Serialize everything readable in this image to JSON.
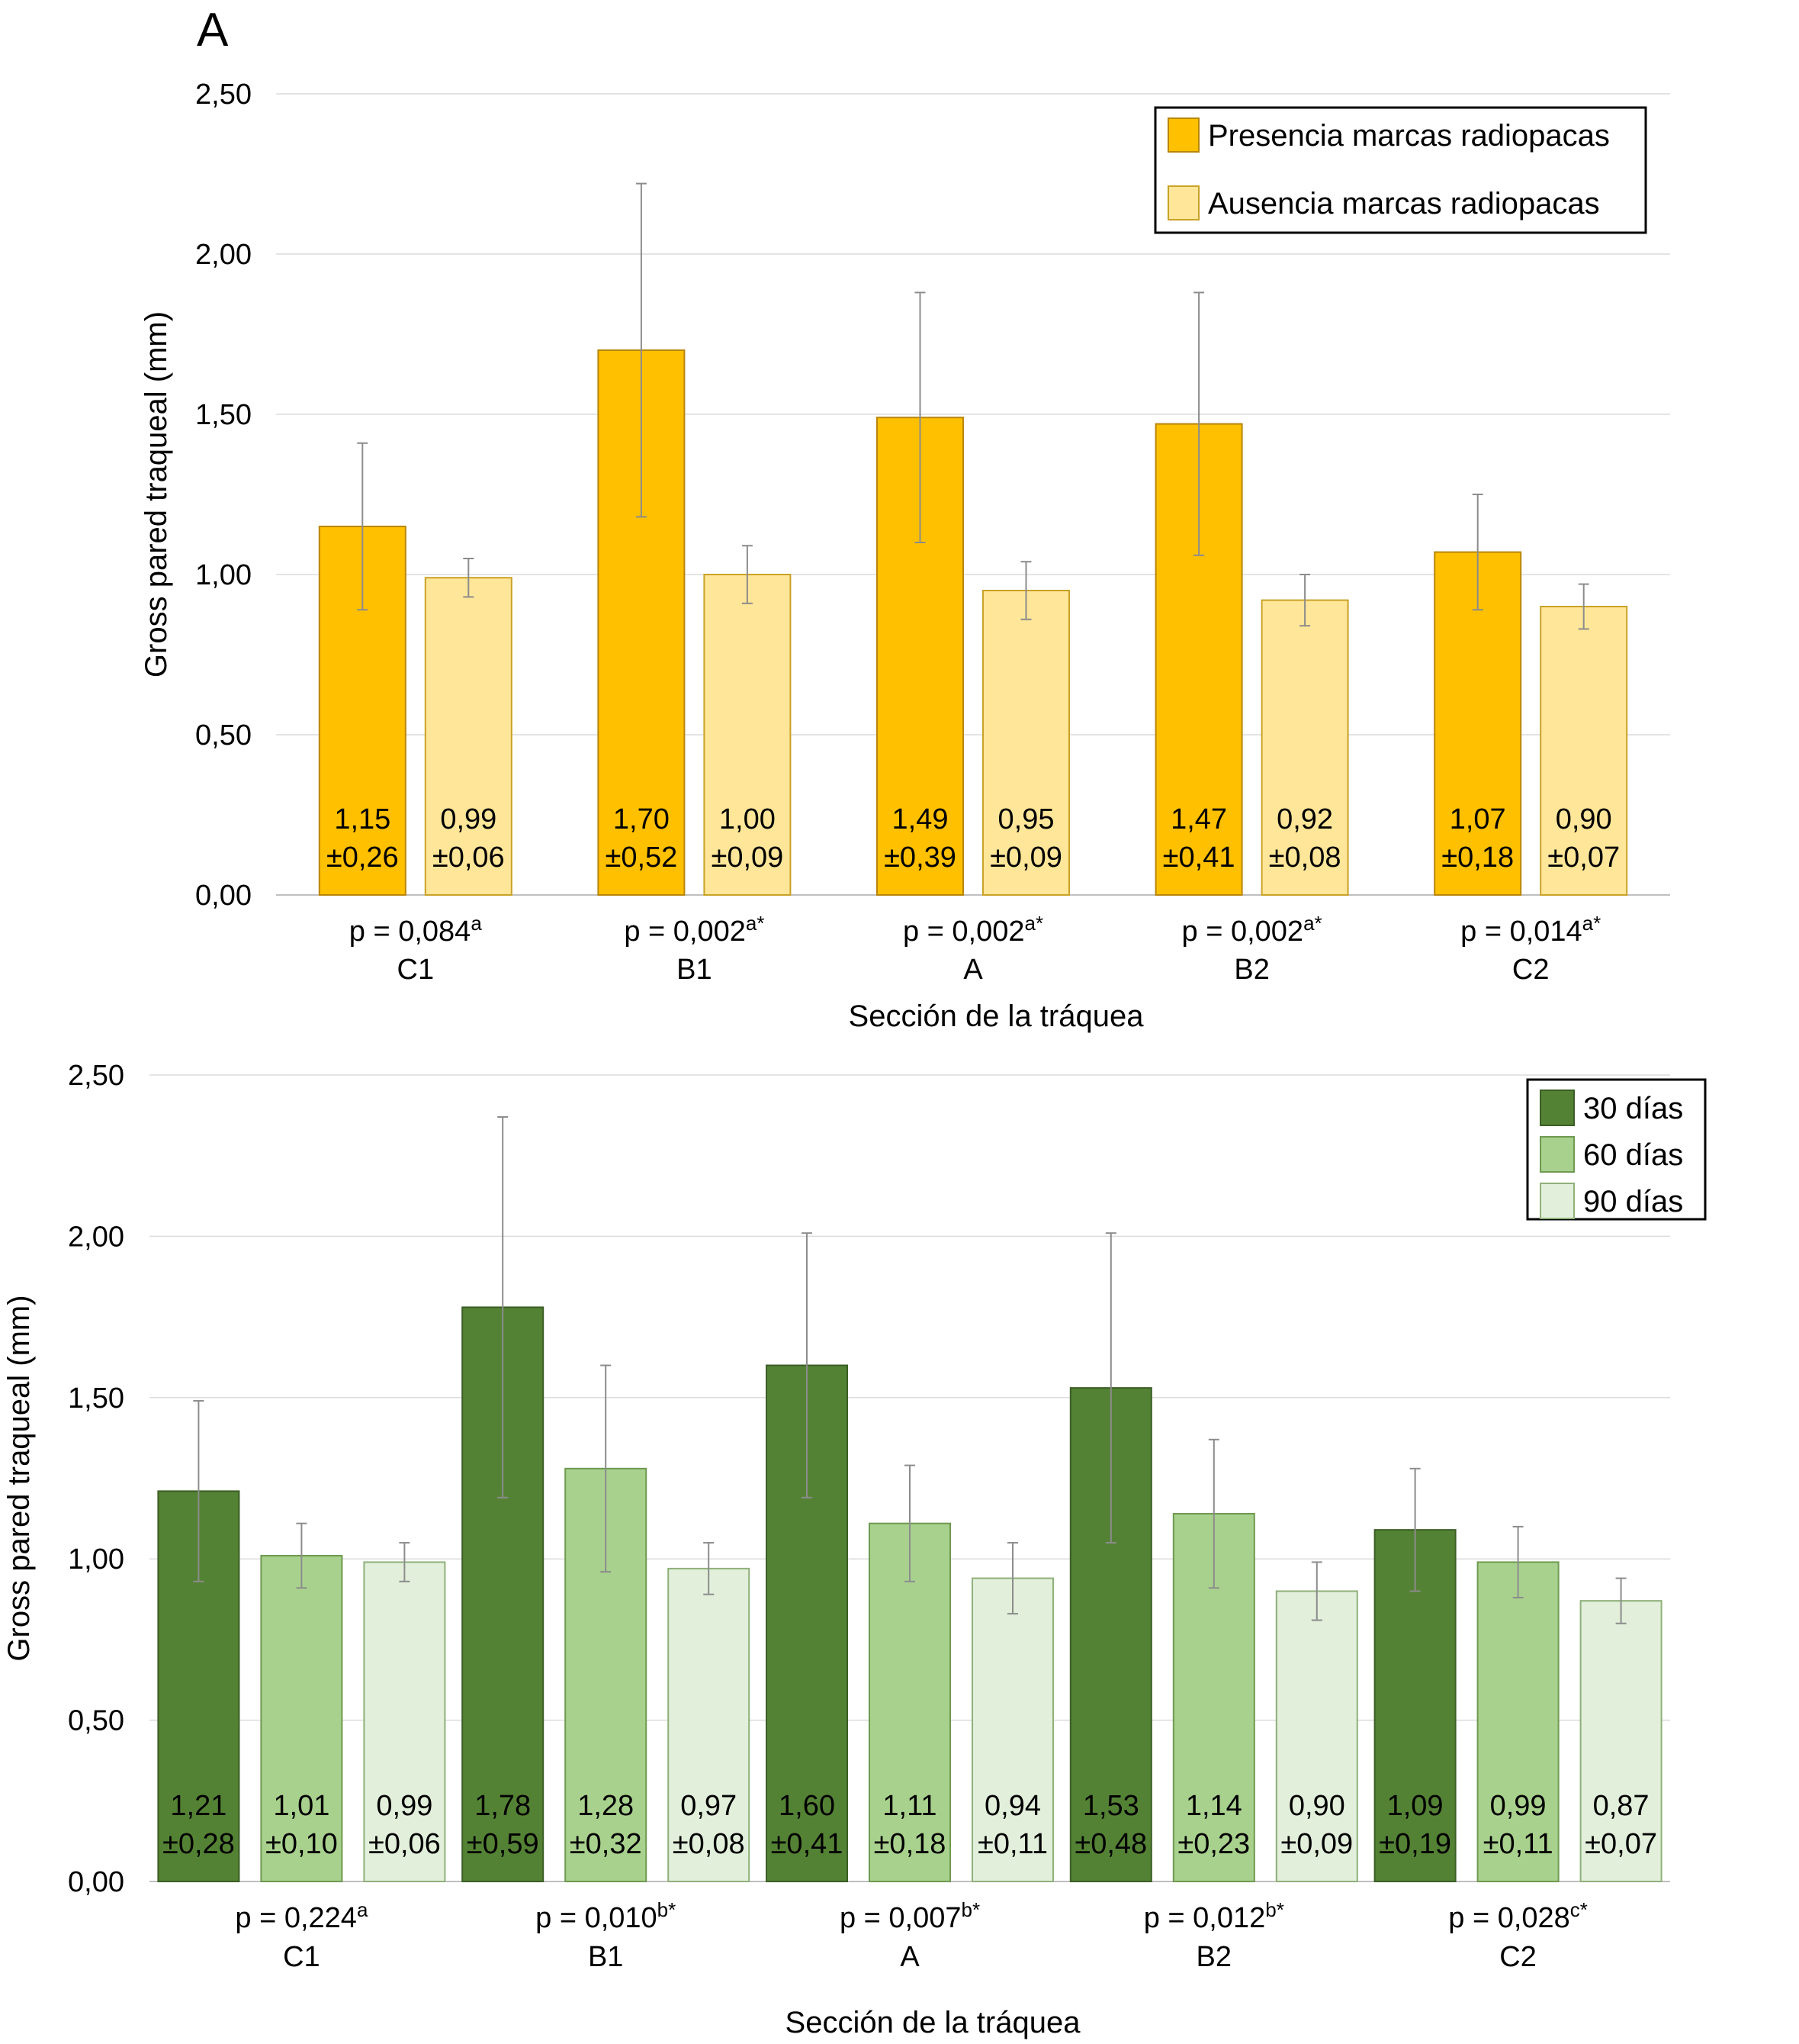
{
  "panel_label": "A",
  "chart_data": [
    {
      "type": "bar",
      "categories": [
        "C1",
        "B1",
        "A",
        "B2",
        "C2"
      ],
      "ylabel": "Gross pared traqueal (mm)",
      "xlabel": "Sección de la tráquea",
      "ylim": [
        0,
        2.5
      ],
      "yticks": [
        "0,00",
        "0,50",
        "1,00",
        "1,50",
        "2,00",
        "2,50"
      ],
      "ytick_values": [
        0,
        0.5,
        1,
        1.5,
        2,
        2.5
      ],
      "grid": true,
      "legend_position": "top-right",
      "p_values": [
        {
          "text": "p = 0,084",
          "sup": "a"
        },
        {
          "text": "p = 0,002",
          "sup": "a*"
        },
        {
          "text": "p = 0,002",
          "sup": "a*"
        },
        {
          "text": "p = 0,002",
          "sup": "a*"
        },
        {
          "text": "p = 0,014",
          "sup": "a*"
        }
      ],
      "series": [
        {
          "name": "Presencia marcas radiopacas",
          "color": "#FFC000",
          "stroke": "#B8860B",
          "values": [
            1.15,
            1.7,
            1.49,
            1.47,
            1.07
          ],
          "errors": [
            0.26,
            0.52,
            0.39,
            0.41,
            0.18
          ],
          "labels": [
            "1,15",
            "1,70",
            "1,49",
            "1,47",
            "1,07"
          ],
          "error_labels": [
            "±0,26",
            "±0,52",
            "±0,39",
            "±0,41",
            "±0,18"
          ]
        },
        {
          "name": "Ausencia marcas radiopacas",
          "color": "#FFE699",
          "stroke": "#C9A227",
          "values": [
            0.99,
            1.0,
            0.95,
            0.92,
            0.9
          ],
          "errors": [
            0.06,
            0.09,
            0.09,
            0.08,
            0.07
          ],
          "labels": [
            "0,99",
            "1,00",
            "0,95",
            "0,92",
            "0,90"
          ],
          "error_labels": [
            "±0,06",
            "±0,09",
            "±0,09",
            "±0,08",
            "±0,07"
          ]
        }
      ]
    },
    {
      "type": "bar",
      "categories": [
        "C1",
        "B1",
        "A",
        "B2",
        "C2"
      ],
      "ylabel": "Gross pared traqueal (mm)",
      "xlabel": "Sección de la tráquea",
      "ylim": [
        0,
        2.5
      ],
      "yticks": [
        "0,00",
        "0,50",
        "1,00",
        "1,50",
        "2,00",
        "2,50"
      ],
      "ytick_values": [
        0,
        0.5,
        1,
        1.5,
        2,
        2.5
      ],
      "grid": true,
      "legend_position": "top-right",
      "p_values": [
        {
          "text": "p = 0,224",
          "sup": "a"
        },
        {
          "text": "p = 0,010",
          "sup": "b*"
        },
        {
          "text": "p = 0,007",
          "sup": "b*"
        },
        {
          "text": "p = 0,012",
          "sup": "b*"
        },
        {
          "text": "p = 0,028",
          "sup": "c*"
        }
      ],
      "series": [
        {
          "name": "30 días",
          "color": "#548235",
          "stroke": "#3B5E25",
          "values": [
            1.21,
            1.78,
            1.6,
            1.53,
            1.09
          ],
          "errors": [
            0.28,
            0.59,
            0.41,
            0.48,
            0.19
          ],
          "labels": [
            "1,21",
            "1,78",
            "1,60",
            "1,53",
            "1,09"
          ],
          "error_labels": [
            "±0,28",
            "±0,59",
            "±0,41",
            "±0,48",
            "±0,19"
          ]
        },
        {
          "name": "60 días",
          "color": "#A9D18E",
          "stroke": "#6E9A50",
          "values": [
            1.01,
            1.28,
            1.11,
            1.14,
            0.99
          ],
          "errors": [
            0.1,
            0.32,
            0.18,
            0.23,
            0.11
          ],
          "labels": [
            "1,01",
            "1,28",
            "1,11",
            "1,14",
            "0,99"
          ],
          "error_labels": [
            "±0,10",
            "±0,32",
            "±0,18",
            "±0,23",
            "±0,11"
          ]
        },
        {
          "name": "90 días",
          "color": "#E2EFDA",
          "stroke": "#8FB07A",
          "values": [
            0.99,
            0.97,
            0.94,
            0.9,
            0.87
          ],
          "errors": [
            0.06,
            0.08,
            0.11,
            0.09,
            0.07
          ],
          "labels": [
            "0,99",
            "0,97",
            "0,94",
            "0,90",
            "0,87"
          ],
          "error_labels": [
            "±0,06",
            "±0,08",
            "±0,11",
            "±0,09",
            "±0,07"
          ]
        }
      ]
    }
  ]
}
